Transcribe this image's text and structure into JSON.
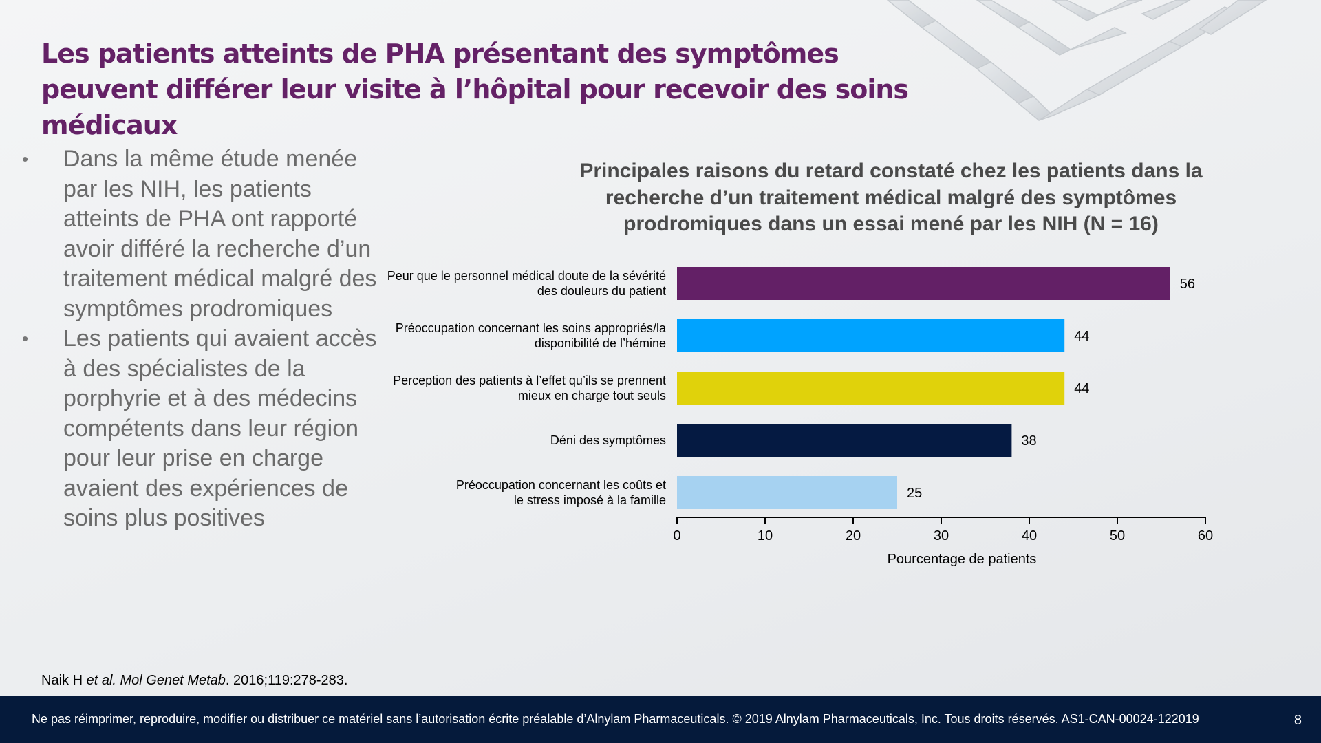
{
  "slide": {
    "title": "Les patients atteints de PHA présentant des symptômes peuvent différer leur visite à l’hôpital pour recevoir des soins médicaux",
    "bullets": [
      "Dans la même étude menée par les NIH, les patients atteints de PHA ont rapporté avoir différé la recherche d’un traitement médical malgré des symptômes prodromiques",
      "Les patients qui avaient accès à des spécialistes de la porphyrie et à des médecins compétents dans leur région pour leur prise en charge avaient des expériences de soins plus positives"
    ],
    "bullet_marker": "•",
    "citation": {
      "prefix": "Naik H ",
      "authors_italic": "et al.",
      "journal_italic": "Mol Genet Metab",
      "suffix": ". 2016;119:278-283."
    },
    "footer_text": "Ne pas réimprimer, reproduire, modifier ou distribuer ce matériel sans l’autorisation écrite préalable d’Alnylam Pharmaceuticals. © 2019 Alnylam Pharmaceuticals, Inc. Tous droits réservés. AS1-CAN-00024-122019",
    "page_number": "8",
    "colors": {
      "title": "#642166",
      "footer_bg": "#051a3b"
    }
  },
  "chart_data": {
    "type": "bar",
    "orientation": "horizontal",
    "title": "Principales raisons du retard constaté chez les patients dans la recherche d’un traitement médical malgré des symptômes prodromiques dans un essai mené par les NIH (N = 16)",
    "xlabel": "Pourcentage de patients",
    "ylabel": "",
    "xlim": [
      0,
      60
    ],
    "xticks": [
      0,
      10,
      20,
      30,
      40,
      50,
      60
    ],
    "grid": false,
    "categories": [
      [
        "Peur que le personnel médical doute de la sévérité",
        "des douleurs du patient"
      ],
      [
        "Préoccupation concernant les soins appropriés/la",
        "disponibilité de l’hémine"
      ],
      [
        "Perception des patients à l’effet qu’ils se prennent",
        "mieux en charge tout seuls"
      ],
      [
        "Déni des symptômes"
      ],
      [
        "Préoccupation concernant les coûts et",
        "le stress imposé à la famille"
      ]
    ],
    "values": [
      56,
      44,
      44,
      38,
      25
    ],
    "colors": [
      "#632066",
      "#00a3ff",
      "#e0d20b",
      "#051a42",
      "#a6d2f1"
    ]
  }
}
